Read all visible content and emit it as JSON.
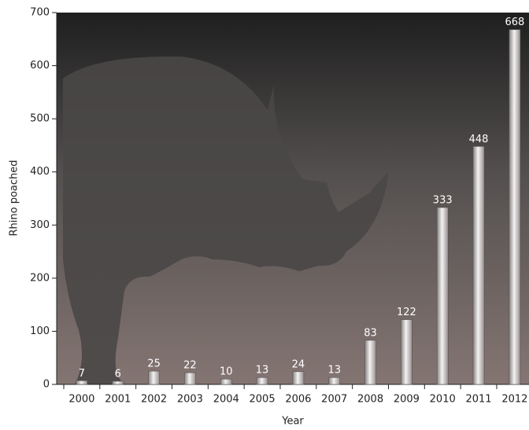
{
  "chart_data": {
    "type": "bar",
    "x_label": "Year",
    "y_label": "Rhino poached",
    "categories": [
      "2000",
      "2001",
      "2002",
      "2003",
      "2004",
      "2005",
      "2006",
      "2007",
      "2008",
      "2009",
      "2010",
      "2011",
      "2012"
    ],
    "values": [
      7,
      6,
      25,
      22,
      10,
      13,
      24,
      13,
      83,
      122,
      333,
      448,
      668
    ],
    "ylim": [
      0,
      700
    ],
    "yticks": [
      0,
      100,
      200,
      300,
      400,
      500,
      600,
      700
    ],
    "grid": false
  }
}
